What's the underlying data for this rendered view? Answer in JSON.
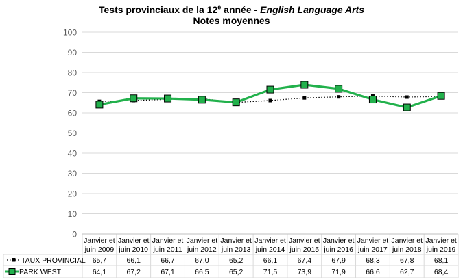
{
  "title": {
    "prefix": "Tests provinciaux de la 12",
    "sup": "e",
    "middle": " année - ",
    "italic": "English Language Arts",
    "line2": "Notes moyennes"
  },
  "chart_data": {
    "type": "line",
    "title": "Tests provinciaux de la 12e année - English Language Arts",
    "subtitle": "Notes moyennes",
    "categories": [
      [
        "Janvier et",
        "juin 2009"
      ],
      [
        "Janvier et",
        "juin 2010"
      ],
      [
        "Janvier et",
        "juin 2011"
      ],
      [
        "Janvier et",
        "juin 2012"
      ],
      [
        "Janvier et",
        "juin 2013"
      ],
      [
        "Janvier et",
        "juin 2014"
      ],
      [
        "Janvier et",
        "juin 2015"
      ],
      [
        "Janvier et",
        "juin 2016"
      ],
      [
        "Janvier et",
        "juin 2017"
      ],
      [
        "Janvier et",
        "juin 2018"
      ],
      [
        "Janvier et",
        "juin 2019"
      ]
    ],
    "ylim": [
      0,
      100
    ],
    "yticks": [
      0,
      10,
      20,
      30,
      40,
      50,
      60,
      70,
      80,
      90,
      100
    ],
    "gridlines": true,
    "legend": "data-table",
    "series": [
      {
        "name": "TAUX PROVINCIAL",
        "color": "#000000",
        "style": "dotted",
        "values": [
          65.7,
          66.1,
          66.7,
          67.0,
          65.2,
          66.1,
          67.4,
          67.9,
          68.3,
          67.8,
          68.1
        ],
        "labels": [
          "65,7",
          "66,1",
          "66,7",
          "67,0",
          "65,2",
          "66,1",
          "67,4",
          "67,9",
          "68,3",
          "67,8",
          "68,1"
        ]
      },
      {
        "name": "PARK WEST",
        "color": "#22b14c",
        "style": "solid",
        "values": [
          64.1,
          67.2,
          67.1,
          66.5,
          65.2,
          71.5,
          73.9,
          71.9,
          66.6,
          62.7,
          68.4
        ],
        "labels": [
          "64,1",
          "67,2",
          "67,1",
          "66,5",
          "65,2",
          "71,5",
          "73,9",
          "71,9",
          "66,6",
          "62,7",
          "68,4"
        ]
      }
    ]
  }
}
